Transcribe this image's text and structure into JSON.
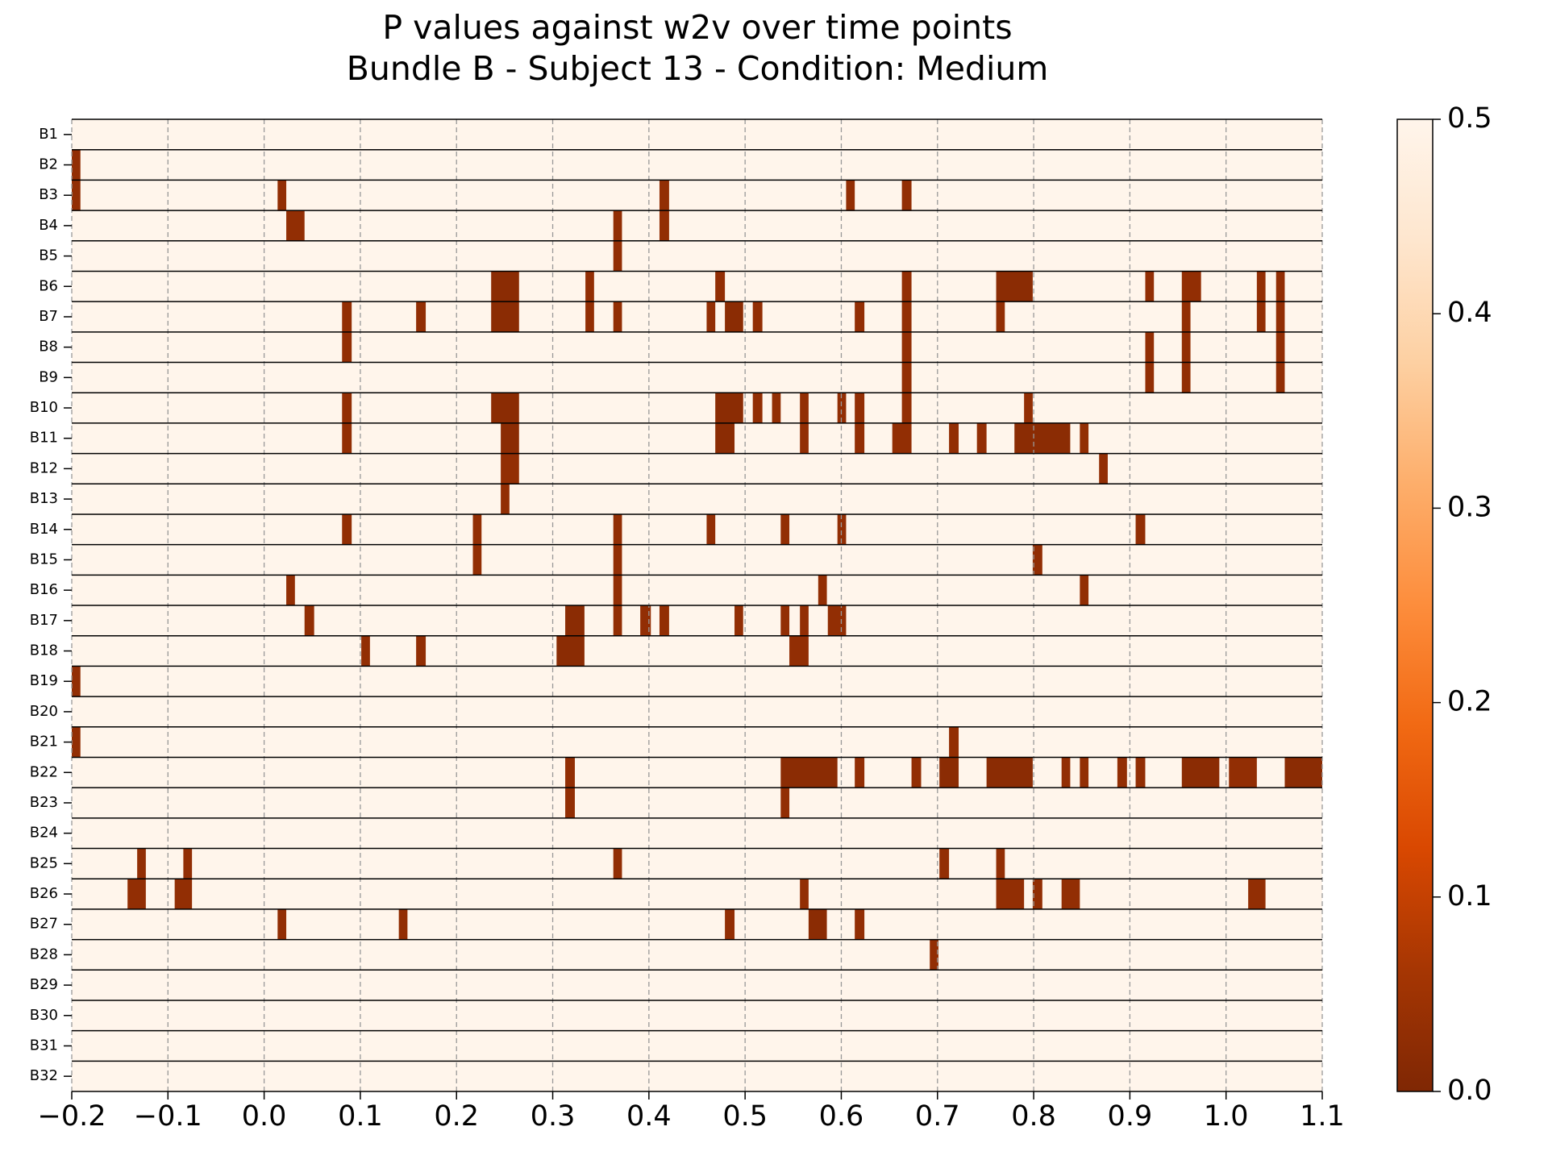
{
  "chart_data": {
    "type": "heatmap",
    "title": "P values against w2v over time points",
    "subtitle": "Bundle B - Subject 13 - Condition: Medium",
    "xlim": [
      -0.2,
      1.1
    ],
    "xticks": [
      {
        "value": -0.2,
        "label": "−0.2"
      },
      {
        "value": -0.1,
        "label": "−0.1"
      },
      {
        "value": 0,
        "label": "0.0"
      },
      0.1,
      0.2,
      0.3,
      0.4,
      0.5,
      0.6,
      0.7,
      0.8,
      0.9,
      {
        "value": 1,
        "label": "1.0"
      },
      1.1
    ],
    "clim": [
      0,
      0.5
    ],
    "cticks": [
      {
        "value": 0,
        "label": "0.0"
      },
      0.1,
      0.2,
      0.3,
      0.4,
      0.5
    ],
    "colormap": "Oranges_r",
    "grid": true,
    "series": [
      {
        "name": "B1",
        "start": [],
        "end": [],
        "values": []
      },
      {
        "name": "B2",
        "start": [
          -0.2
        ],
        "end": [
          -0.191
        ],
        "values": [
          0.03
        ]
      },
      {
        "name": "B3",
        "start": [
          -0.2,
          0.014,
          0.411,
          0.605,
          0.663
        ],
        "end": [
          -0.191,
          0.023,
          0.421,
          0.614,
          0.673
        ],
        "values": [
          0.03,
          0.03,
          0.03,
          0.03,
          0.03
        ]
      },
      {
        "name": "B4",
        "start": [
          0.023,
          0.363,
          0.411
        ],
        "end": [
          0.042,
          0.372,
          0.421
        ],
        "values": [
          0.03,
          0.03,
          0.03
        ]
      },
      {
        "name": "B5",
        "start": [
          0.363
        ],
        "end": [
          0.372
        ],
        "values": [
          0.03
        ]
      },
      {
        "name": "B6",
        "start": [
          0.236,
          0.334,
          0.469,
          0.663,
          0.761,
          0.916,
          0.954,
          1.032,
          1.052
        ],
        "end": [
          0.265,
          0.343,
          0.479,
          0.673,
          0.799,
          0.925,
          0.974,
          1.041,
          1.061
        ],
        "values": [
          0.02,
          0.03,
          0.03,
          0.03,
          0.02,
          0.03,
          0.03,
          0.03,
          0.03
        ]
      },
      {
        "name": "B7",
        "start": [
          0.081,
          0.158,
          0.236,
          0.334,
          0.363,
          0.46,
          0.479,
          0.508,
          0.614,
          0.663,
          0.761,
          0.954,
          1.032,
          1.052
        ],
        "end": [
          0.091,
          0.168,
          0.265,
          0.343,
          0.372,
          0.469,
          0.498,
          0.518,
          0.624,
          0.673,
          0.77,
          0.963,
          1.041,
          1.061
        ],
        "values": [
          0.03,
          0.03,
          0.02,
          0.03,
          0.03,
          0.03,
          0.02,
          0.03,
          0.03,
          0.03,
          0.03,
          0.03,
          0.03,
          0.03
        ]
      },
      {
        "name": "B8",
        "start": [
          0.081,
          0.663,
          0.916,
          0.954,
          1.052
        ],
        "end": [
          0.091,
          0.673,
          0.925,
          0.963,
          1.061
        ],
        "values": [
          0.03,
          0.03,
          0.03,
          0.03,
          0.03
        ]
      },
      {
        "name": "B9",
        "start": [
          0.663,
          0.916,
          0.954,
          1.052
        ],
        "end": [
          0.673,
          0.925,
          0.963,
          1.061
        ],
        "values": [
          0.03,
          0.03,
          0.03,
          0.03
        ]
      },
      {
        "name": "B10",
        "start": [
          0.081,
          0.236,
          0.469,
          0.508,
          0.528,
          0.557,
          0.596,
          0.614,
          0.663,
          0.79
        ],
        "end": [
          0.091,
          0.265,
          0.498,
          0.518,
          0.537,
          0.566,
          0.605,
          0.624,
          0.673,
          0.799
        ],
        "values": [
          0.03,
          0.02,
          0.02,
          0.03,
          0.03,
          0.03,
          0.03,
          0.03,
          0.03,
          0.03
        ]
      },
      {
        "name": "B11",
        "start": [
          0.081,
          0.246,
          0.469,
          0.557,
          0.614,
          0.653,
          0.712,
          0.741,
          0.78,
          0.848
        ],
        "end": [
          0.091,
          0.265,
          0.489,
          0.566,
          0.624,
          0.673,
          0.722,
          0.751,
          0.838,
          0.857
        ],
        "values": [
          0.03,
          0.02,
          0.02,
          0.03,
          0.03,
          0.03,
          0.03,
          0.03,
          0.02,
          0.03
        ]
      },
      {
        "name": "B12",
        "start": [
          0.246,
          0.868
        ],
        "end": [
          0.265,
          0.877
        ],
        "values": [
          0.03,
          0.03
        ]
      },
      {
        "name": "B13",
        "start": [
          0.246
        ],
        "end": [
          0.255
        ],
        "values": [
          0.03
        ]
      },
      {
        "name": "B14",
        "start": [
          0.081,
          0.217,
          0.363,
          0.46,
          0.537,
          0.596,
          0.906
        ],
        "end": [
          0.091,
          0.226,
          0.372,
          0.469,
          0.546,
          0.605,
          0.916
        ],
        "values": [
          0.03,
          0.03,
          0.03,
          0.03,
          0.03,
          0.03,
          0.03
        ]
      },
      {
        "name": "B15",
        "start": [
          0.217,
          0.363,
          0.799
        ],
        "end": [
          0.226,
          0.372,
          0.809
        ],
        "values": [
          0.03,
          0.03,
          0.03
        ]
      },
      {
        "name": "B16",
        "start": [
          0.023,
          0.363,
          0.576,
          0.848
        ],
        "end": [
          0.032,
          0.372,
          0.585,
          0.857
        ],
        "values": [
          0.03,
          0.03,
          0.03,
          0.03
        ]
      },
      {
        "name": "B17",
        "start": [
          0.042,
          0.313,
          0.363,
          0.391,
          0.411,
          0.489,
          0.537,
          0.557,
          0.586
        ],
        "end": [
          0.052,
          0.333,
          0.372,
          0.402,
          0.421,
          0.498,
          0.546,
          0.566,
          0.605
        ],
        "values": [
          0.03,
          0.02,
          0.03,
          0.03,
          0.03,
          0.03,
          0.03,
          0.03,
          0.03
        ]
      },
      {
        "name": "B18",
        "start": [
          0.101,
          0.158,
          0.304,
          0.546
        ],
        "end": [
          0.11,
          0.168,
          0.333,
          0.566
        ],
        "values": [
          0.03,
          0.03,
          0.02,
          0.03
        ]
      },
      {
        "name": "B19",
        "start": [
          -0.2
        ],
        "end": [
          -0.191
        ],
        "values": [
          0.03
        ]
      },
      {
        "name": "B20",
        "start": [],
        "end": [],
        "values": []
      },
      {
        "name": "B21",
        "start": [
          -0.2,
          0.712
        ],
        "end": [
          -0.191,
          0.722
        ],
        "values": [
          0.03,
          0.03
        ]
      },
      {
        "name": "B22",
        "start": [
          0.313,
          0.537,
          0.614,
          0.673,
          0.702,
          0.751,
          0.829,
          0.848,
          0.887,
          0.906,
          0.954,
          1.003,
          1.061
        ],
        "end": [
          0.323,
          0.596,
          0.624,
          0.683,
          0.722,
          0.799,
          0.838,
          0.857,
          0.897,
          0.916,
          0.993,
          1.032,
          1.1
        ],
        "values": [
          0.03,
          0.02,
          0.03,
          0.03,
          0.02,
          0.02,
          0.03,
          0.03,
          0.03,
          0.03,
          0.02,
          0.03,
          0.02
        ]
      },
      {
        "name": "B23",
        "start": [
          0.313,
          0.537
        ],
        "end": [
          0.323,
          0.546
        ],
        "values": [
          0.03,
          0.03
        ]
      },
      {
        "name": "B24",
        "start": [],
        "end": [],
        "values": []
      },
      {
        "name": "B25",
        "start": [
          -0.132,
          -0.084,
          0.363,
          0.702,
          0.761
        ],
        "end": [
          -0.123,
          -0.075,
          0.372,
          0.712,
          0.77
        ],
        "values": [
          0.03,
          0.03,
          0.03,
          0.03,
          0.03
        ]
      },
      {
        "name": "B26",
        "start": [
          -0.142,
          -0.093,
          0.557,
          0.761,
          0.799,
          0.829,
          1.023
        ],
        "end": [
          -0.123,
          -0.075,
          0.566,
          0.79,
          0.809,
          0.848,
          1.041
        ],
        "values": [
          0.03,
          0.03,
          0.03,
          0.03,
          0.03,
          0.03,
          0.03
        ]
      },
      {
        "name": "B27",
        "start": [
          0.014,
          0.14,
          0.479,
          0.566,
          0.614
        ],
        "end": [
          0.023,
          0.149,
          0.489,
          0.585,
          0.624
        ],
        "values": [
          0.03,
          0.03,
          0.03,
          0.02,
          0.03
        ]
      },
      {
        "name": "B28",
        "start": [
          0.692
        ],
        "end": [
          0.701
        ],
        "values": [
          0.03
        ]
      },
      {
        "name": "B29",
        "start": [],
        "end": [],
        "values": []
      },
      {
        "name": "B30",
        "start": [],
        "end": [],
        "values": []
      },
      {
        "name": "B31",
        "start": [],
        "end": [],
        "values": []
      },
      {
        "name": "B32",
        "start": [],
        "end": [],
        "values": []
      }
    ]
  }
}
